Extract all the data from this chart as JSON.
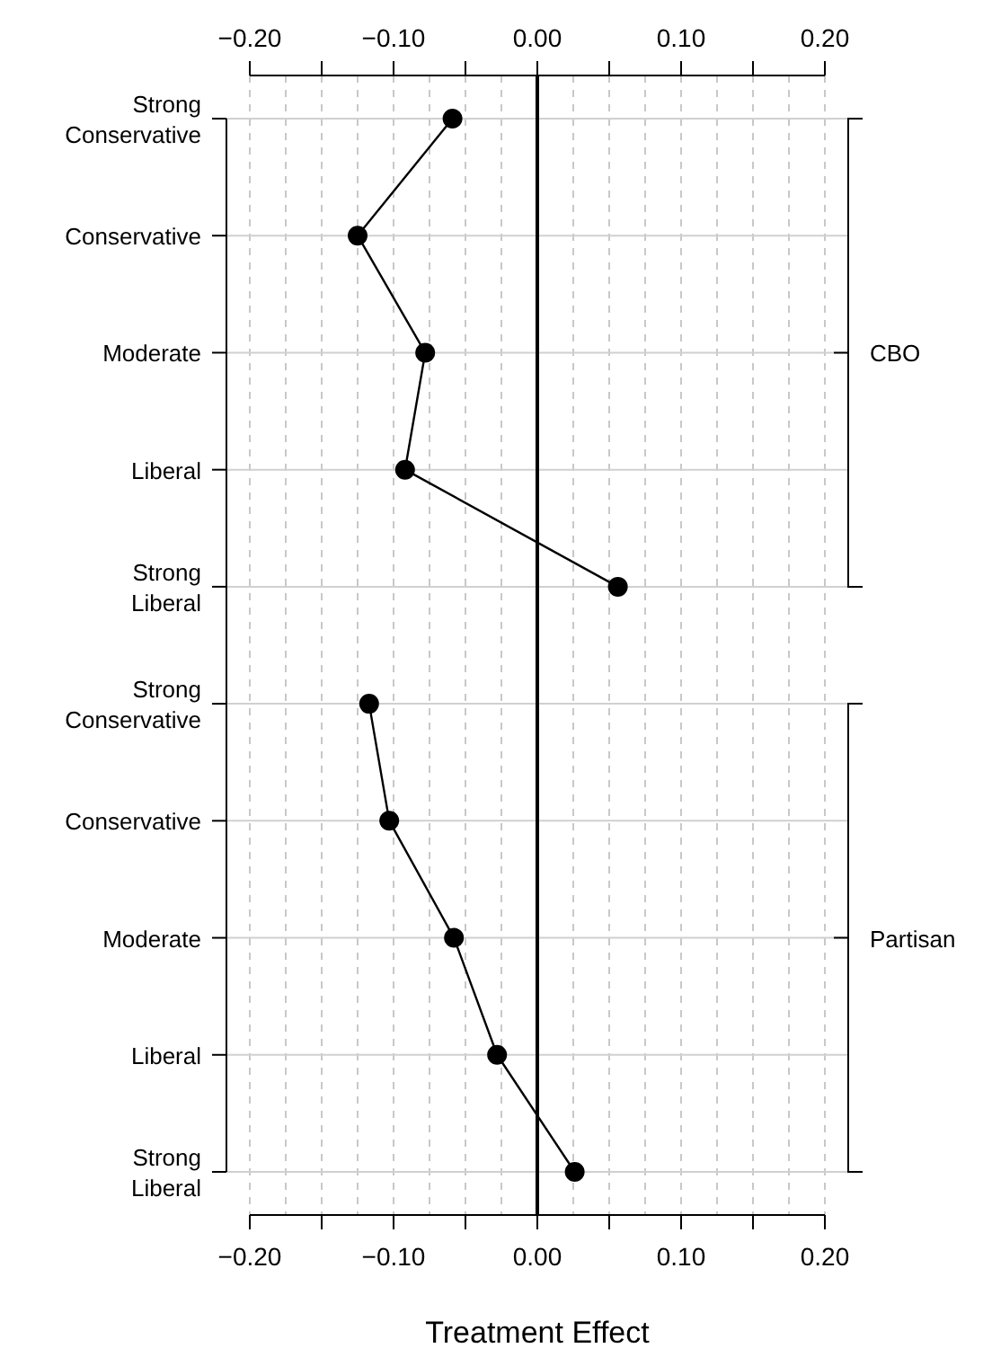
{
  "chart_data": {
    "type": "line",
    "orientation": "horizontal",
    "xlabel": "Treatment Effect",
    "categories": [
      "Strong Conservative",
      "Conservative",
      "Moderate",
      "Liberal",
      "Strong Liberal",
      "Strong Conservative",
      "Conservative",
      "Moderate",
      "Liberal",
      "Strong Liberal"
    ],
    "series": [
      {
        "name": "CBO",
        "color": "#000000",
        "values": [
          -0.059,
          -0.125,
          -0.078,
          -0.092,
          0.056,
          null,
          null,
          null,
          null,
          null
        ]
      },
      {
        "name": "Partisan",
        "color": "#000000",
        "values": [
          null,
          null,
          null,
          null,
          null,
          -0.117,
          -0.103,
          -0.058,
          -0.028,
          0.026
        ]
      }
    ],
    "xlim": [
      -0.2,
      0.2
    ],
    "xticks": [
      {
        "value": -0.2,
        "label": "−0.20"
      },
      {
        "value": -0.15,
        "label": null
      },
      {
        "value": -0.1,
        "label": "−0.10"
      },
      {
        "value": -0.05,
        "label": null
      },
      {
        "value": 0,
        "label": "0.00"
      },
      {
        "value": 0.05,
        "label": null
      },
      {
        "value": 0.1,
        "label": "0.10"
      },
      {
        "value": 0.15,
        "label": null
      },
      {
        "value": 0.2,
        "label": "0.20"
      }
    ],
    "ref_lines": [
      {
        "axis": "x",
        "value": 0,
        "color": "#000000"
      }
    ],
    "grid": true,
    "legend": "right",
    "marker": "circle",
    "line_style": "solid"
  }
}
